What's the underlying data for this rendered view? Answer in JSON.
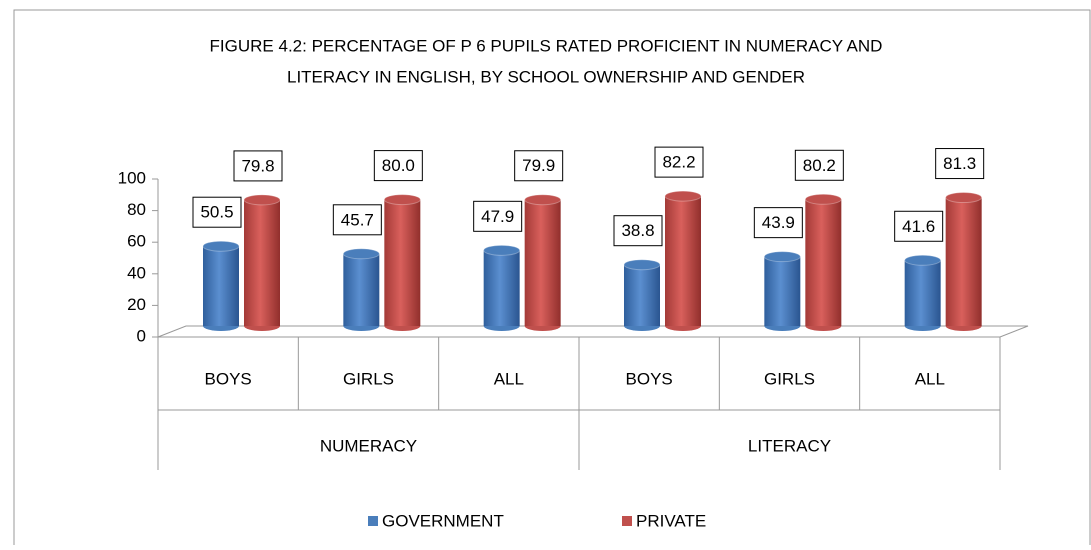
{
  "chart_data": {
    "type": "bar",
    "title": "FIGURE 4.2:  PERCENTAGE  OF P 6 PUPILS RATED PROFICIENT  IN NUMERACY  AND",
    "subtitle": "LITERACY IN ENGLISH,  BY SCHOOL OWNERSHIP  AND  GENDER",
    "categories": [
      "BOYS",
      "GIRLS",
      "ALL",
      "BOYS",
      "GIRLS",
      "ALL"
    ],
    "groups": [
      "NUMERACY",
      "LITERACY"
    ],
    "series": [
      {
        "name": "GOVERNMENT",
        "color": "#4a7ebb",
        "values": [
          50.5,
          45.7,
          47.9,
          38.8,
          43.9,
          41.6
        ],
        "value_labels": [
          "50.5",
          "45.7",
          "47.9",
          "38.8",
          "43.9",
          "41.6"
        ]
      },
      {
        "name": "PRIVATE",
        "color": "#c0504d",
        "values": [
          79.8,
          80.0,
          79.9,
          82.2,
          80.2,
          81.3
        ],
        "value_labels": [
          "79.8",
          "80.0",
          "79.9",
          "82.2",
          "80.2",
          "81.3"
        ]
      }
    ],
    "ylim": [
      0,
      100
    ],
    "yticks": [
      0,
      20,
      40,
      60,
      80,
      100
    ],
    "legend": "bottom"
  }
}
